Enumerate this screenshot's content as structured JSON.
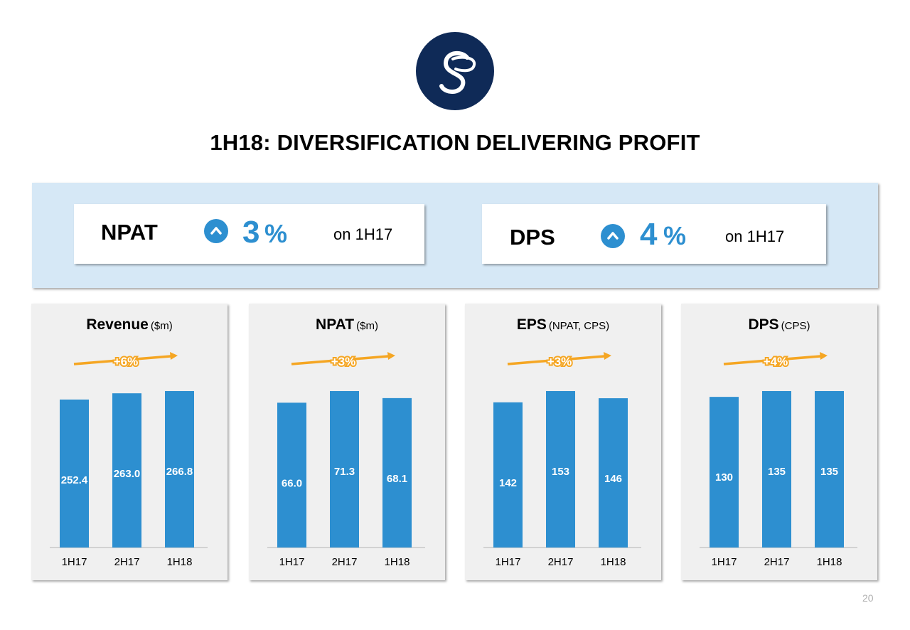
{
  "slide": {
    "title": "1H18: DIVERSIFICATION DELIVERING PROFIT",
    "page_number": "20"
  },
  "logo": {
    "icon": "script-s-logo-icon",
    "color": "#0f2a57"
  },
  "colors": {
    "accent": "#2d8fd0",
    "trend": "#f5a623",
    "panel": "#f0f0f0",
    "band": "#d6e8f6"
  },
  "highlights": [
    {
      "label": "NPAT",
      "icon": "chevron-up-icon",
      "value": "3",
      "unit": "%",
      "comparison": "on 1H17"
    },
    {
      "label": "DPS",
      "icon": "chevron-up-icon",
      "value": "4",
      "unit": "%",
      "comparison": "on 1H17"
    }
  ],
  "chart_data": [
    {
      "type": "bar",
      "title": "Revenue",
      "unit": "($m)",
      "categories": [
        "1H17",
        "2H17",
        "1H18"
      ],
      "values": [
        252.4,
        263.0,
        266.8
      ],
      "labels": [
        "252.4",
        "263.0",
        "266.8"
      ],
      "trend_label": "+6%",
      "ylim": [
        0,
        266.8
      ]
    },
    {
      "type": "bar",
      "title": "NPAT",
      "unit": "($m)",
      "categories": [
        "1H17",
        "2H17",
        "1H18"
      ],
      "values": [
        66.0,
        71.3,
        68.1
      ],
      "labels": [
        "66.0",
        "71.3",
        "68.1"
      ],
      "trend_label": "+3%",
      "ylim": [
        0,
        71.3
      ]
    },
    {
      "type": "bar",
      "title": "EPS",
      "unit": "(NPAT, CPS)",
      "categories": [
        "1H17",
        "2H17",
        "1H18"
      ],
      "values": [
        142,
        153,
        146
      ],
      "labels": [
        "142",
        "153",
        "146"
      ],
      "trend_label": "+3%",
      "ylim": [
        0,
        153
      ]
    },
    {
      "type": "bar",
      "title": "DPS",
      "unit": "(CPS)",
      "categories": [
        "1H17",
        "2H17",
        "1H18"
      ],
      "values": [
        130,
        135,
        135
      ],
      "labels": [
        "130",
        "135",
        "135"
      ],
      "trend_label": "+4%",
      "ylim": [
        0,
        135
      ]
    }
  ]
}
